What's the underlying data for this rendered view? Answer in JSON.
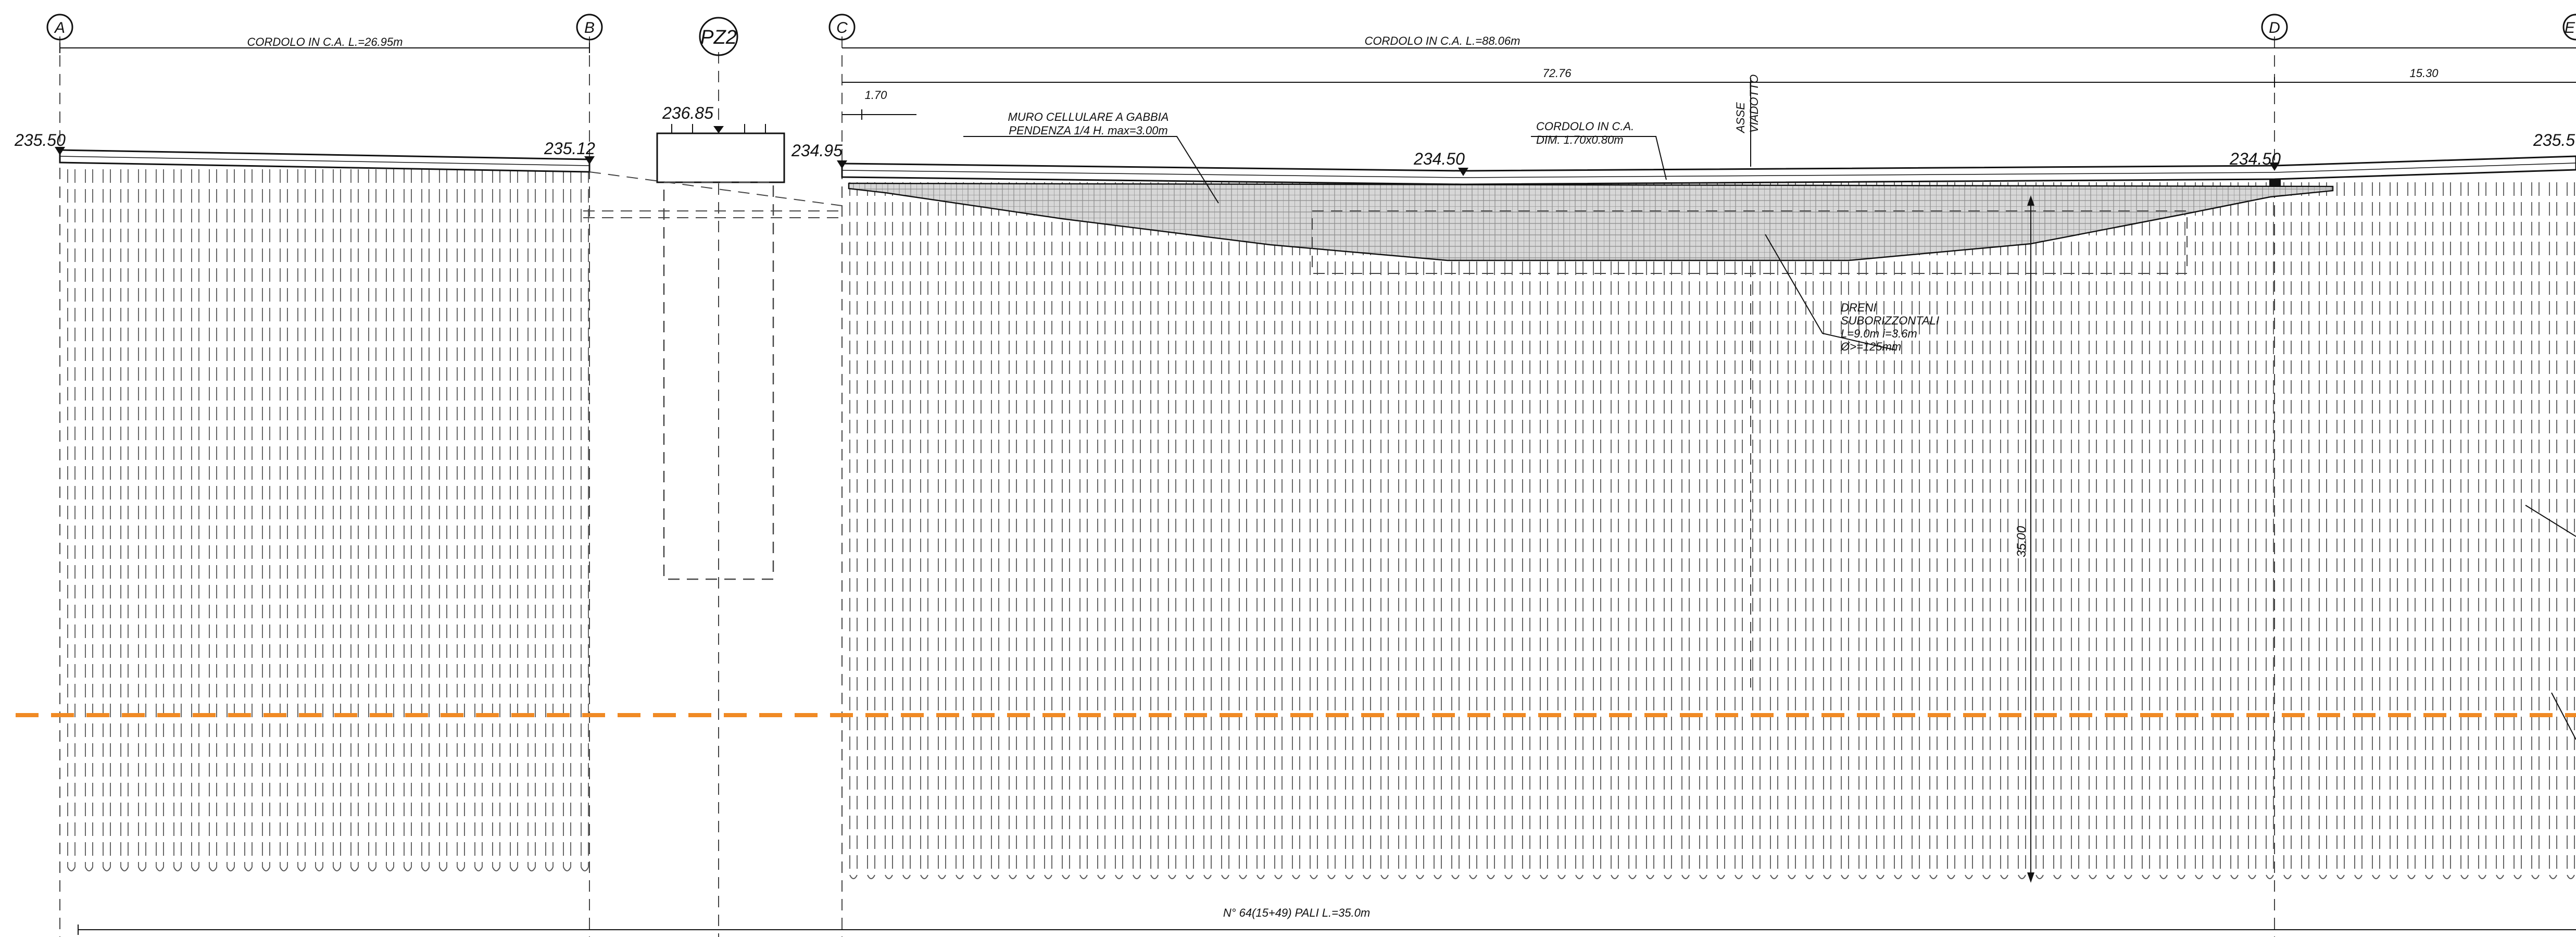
{
  "axes": [
    {
      "id": "A",
      "label": "A"
    },
    {
      "id": "B",
      "label": "B"
    },
    {
      "id": "PZ2",
      "label": "PZ2"
    },
    {
      "id": "C",
      "label": "C"
    },
    {
      "id": "D",
      "label": "D"
    },
    {
      "id": "E",
      "label": "E"
    }
  ],
  "dimensions": {
    "cordolo_left": "CORDOLO IN C.A. L.=26.95m",
    "cordolo_right": "CORDOLO IN C.A. L.=88.06m",
    "span_1": "72.76",
    "span_2": "15.30",
    "offset": "1.70",
    "depth": "35.00",
    "piles_total": "N° 64(15+49) PALI L.=35.0m"
  },
  "elevations": {
    "a": "235.50",
    "b": "235.12",
    "pz2": "236.85",
    "c": "234.95",
    "mid": "234.50",
    "d": "234.50",
    "e": "235.5"
  },
  "annotations": {
    "muro_line1": "MURO CELLULARE A GABBIA",
    "muro_line2": "PENDENZA 1/4 H. max=3.00m",
    "cordolo_dim_line1": "CORDOLO IN C.A.",
    "cordolo_dim_line2": "DIM. 1.70x0.80m",
    "asse_line1": "ASSE",
    "asse_line2": "VIADOTTO",
    "dreni_line1": "DRENI",
    "dreni_line2": "SUBORIZZONTALI",
    "dreni_line3": "L=9.0m  i=3.6m",
    "dreni_line4": "Ø>=125mm"
  },
  "colors": {
    "line": "#111111",
    "pile": "#666666",
    "fill": "#cfcfcf",
    "accent": "#f08a24"
  }
}
